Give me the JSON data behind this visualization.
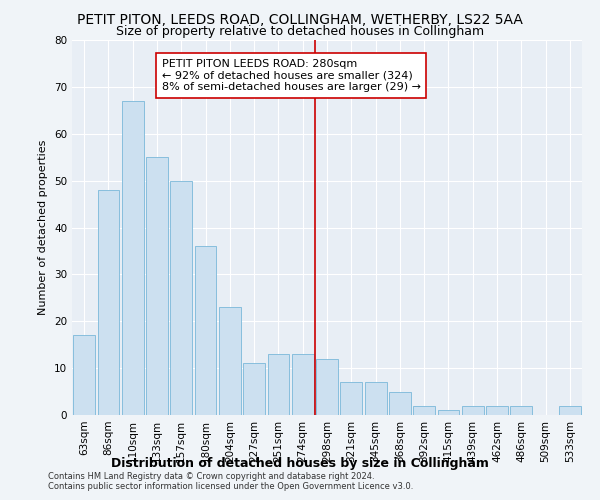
{
  "title1": "PETIT PITON, LEEDS ROAD, COLLINGHAM, WETHERBY, LS22 5AA",
  "title2": "Size of property relative to detached houses in Collingham",
  "xlabel": "Distribution of detached houses by size in Collingham",
  "ylabel": "Number of detached properties",
  "footer1": "Contains HM Land Registry data © Crown copyright and database right 2024.",
  "footer2": "Contains public sector information licensed under the Open Government Licence v3.0.",
  "categories": [
    "63sqm",
    "86sqm",
    "110sqm",
    "133sqm",
    "157sqm",
    "180sqm",
    "204sqm",
    "227sqm",
    "251sqm",
    "274sqm",
    "298sqm",
    "321sqm",
    "345sqm",
    "368sqm",
    "392sqm",
    "415sqm",
    "439sqm",
    "462sqm",
    "486sqm",
    "509sqm",
    "533sqm"
  ],
  "values": [
    17,
    48,
    67,
    55,
    50,
    36,
    23,
    11,
    13,
    13,
    12,
    7,
    7,
    5,
    2,
    1,
    2,
    2,
    2,
    0,
    2
  ],
  "bar_color": "#cce0f0",
  "bar_edge_color": "#7ab8d9",
  "vline_x_index": 9.5,
  "vline_color": "#cc0000",
  "annotation_text": "PETIT PITON LEEDS ROAD: 280sqm\n← 92% of detached houses are smaller (324)\n8% of semi-detached houses are larger (29) →",
  "annotation_box_color": "#ffffff",
  "annotation_box_edge": "#cc0000",
  "ylim": [
    0,
    80
  ],
  "yticks": [
    0,
    10,
    20,
    30,
    40,
    50,
    60,
    70,
    80
  ],
  "bg_color": "#e8eef5",
  "fig_bg_color": "#f0f4f8",
  "grid_color": "#ffffff",
  "title_fontsize": 10,
  "subtitle_fontsize": 9,
  "ylabel_fontsize": 8,
  "xlabel_fontsize": 9,
  "tick_fontsize": 7.5,
  "annotation_fontsize": 8,
  "footer_fontsize": 6
}
